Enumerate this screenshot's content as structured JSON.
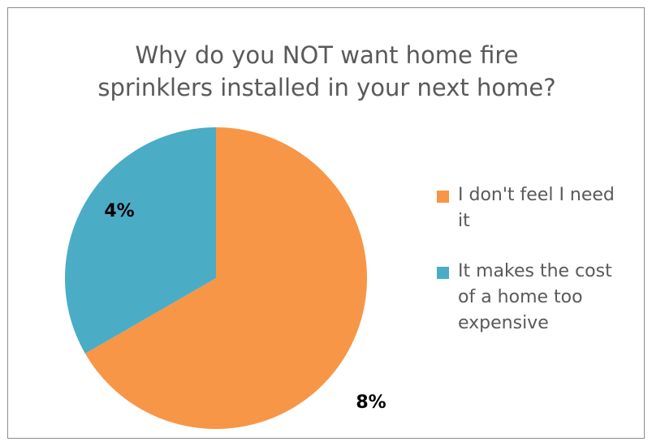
{
  "chart_data": {
    "type": "pie",
    "title_lines": [
      "Why do you NOT want home fire",
      "sprinklers installed in your next home?"
    ],
    "slices": [
      {
        "label": "I don't feel I need it",
        "value": 8,
        "display": "8%",
        "color": "#F79646"
      },
      {
        "label": "It makes the cost of a home too expensive",
        "value": 4,
        "display": "4%",
        "color": "#4BACC6"
      }
    ],
    "legend_position": "right",
    "start_angle_deg": 0,
    "direction": "clockwise"
  }
}
